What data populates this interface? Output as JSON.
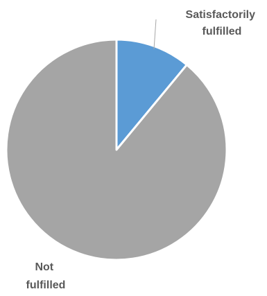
{
  "chart_data": {
    "type": "pie",
    "title": "",
    "start_angle_deg": 0,
    "direction": "clockwise",
    "legend": "none",
    "slices": [
      {
        "label_lines": [
          "Satisfactorily",
          "fulfilled"
        ],
        "value": 11,
        "color": "#5b9bd5"
      },
      {
        "label_lines": [
          "Not",
          "fulfilled"
        ],
        "value": 89,
        "color": "#a5a5a5"
      }
    ]
  }
}
